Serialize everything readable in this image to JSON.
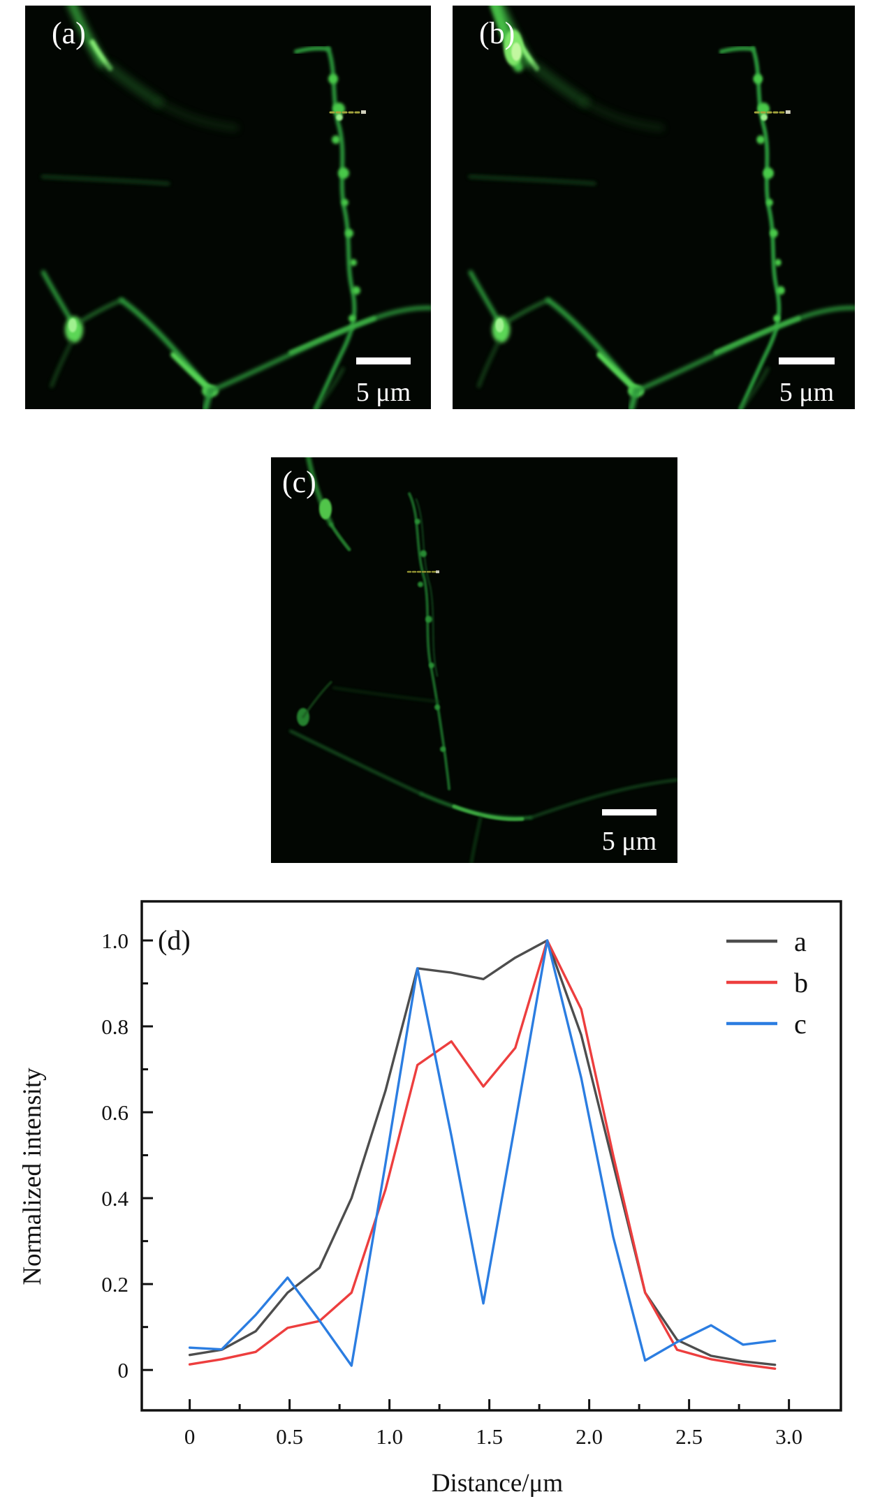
{
  "figure": {
    "panels": {
      "a": {
        "label": "(a)",
        "scalebar_label": "5 μm"
      },
      "b": {
        "label": "(b)",
        "scalebar_label": "5 μm"
      },
      "c": {
        "label": "(c)",
        "scalebar_label": "5 μm"
      },
      "d": {
        "label": "(d)"
      }
    }
  },
  "colors": {
    "series_a": "#4d4d4d",
    "series_b": "#ed3e3e",
    "series_c": "#2b7de1",
    "axis": "#111111",
    "fluorescence_green": "#2f9e3c",
    "profile_marker_yellow": "#a3a33c"
  },
  "chart_data": {
    "type": "line",
    "title": "",
    "xlabel": "Distance/μm",
    "ylabel": "Normalized intensity",
    "xlim": [
      -0.24,
      3.26
    ],
    "ylim": [
      -0.094,
      1.091
    ],
    "grid": false,
    "legend_position": "upper right",
    "x_major_ticks": [
      0,
      0.5,
      1.0,
      1.5,
      2.0,
      2.5,
      3.0
    ],
    "x_tick_labels": [
      "0",
      "0.5",
      "1.0",
      "1.5",
      "2.0",
      "2.5",
      "3.0"
    ],
    "x_minor_ticks": [
      0.25,
      0.75,
      1.25,
      1.75,
      2.25,
      2.75
    ],
    "y_major_ticks": [
      0,
      0.2,
      0.4,
      0.6,
      0.8,
      1.0
    ],
    "y_tick_labels": [
      "0",
      "0.2",
      "0.4",
      "0.6",
      "0.8",
      "1.0"
    ],
    "y_minor_ticks": [
      0.1,
      0.3,
      0.5,
      0.7,
      0.9
    ],
    "x": [
      0,
      0.16,
      0.33,
      0.49,
      0.65,
      0.81,
      0.98,
      1.14,
      1.31,
      1.47,
      1.63,
      1.79,
      1.96,
      2.12,
      2.28,
      2.44,
      2.61,
      2.77,
      2.93
    ],
    "series": [
      {
        "name": "a",
        "color": "#4d4d4d",
        "values": [
          0.035,
          0.047,
          0.09,
          0.18,
          0.238,
          0.4,
          0.65,
          0.935,
          0.925,
          0.91,
          0.96,
          1.0,
          0.78,
          0.48,
          0.18,
          0.07,
          0.033,
          0.02,
          0.012
        ]
      },
      {
        "name": "b",
        "color": "#ed3e3e",
        "values": [
          0.013,
          0.025,
          0.042,
          0.098,
          0.114,
          0.18,
          0.42,
          0.71,
          0.765,
          0.66,
          0.75,
          1.0,
          0.84,
          0.5,
          0.18,
          0.047,
          0.025,
          0.013,
          0.003
        ]
      },
      {
        "name": "c",
        "color": "#2b7de1",
        "values": [
          0.052,
          0.048,
          0.128,
          0.215,
          0.115,
          0.01,
          0.48,
          0.935,
          0.545,
          0.155,
          0.575,
          1.0,
          0.68,
          0.31,
          0.022,
          0.065,
          0.104,
          0.059,
          0.068
        ]
      }
    ]
  }
}
